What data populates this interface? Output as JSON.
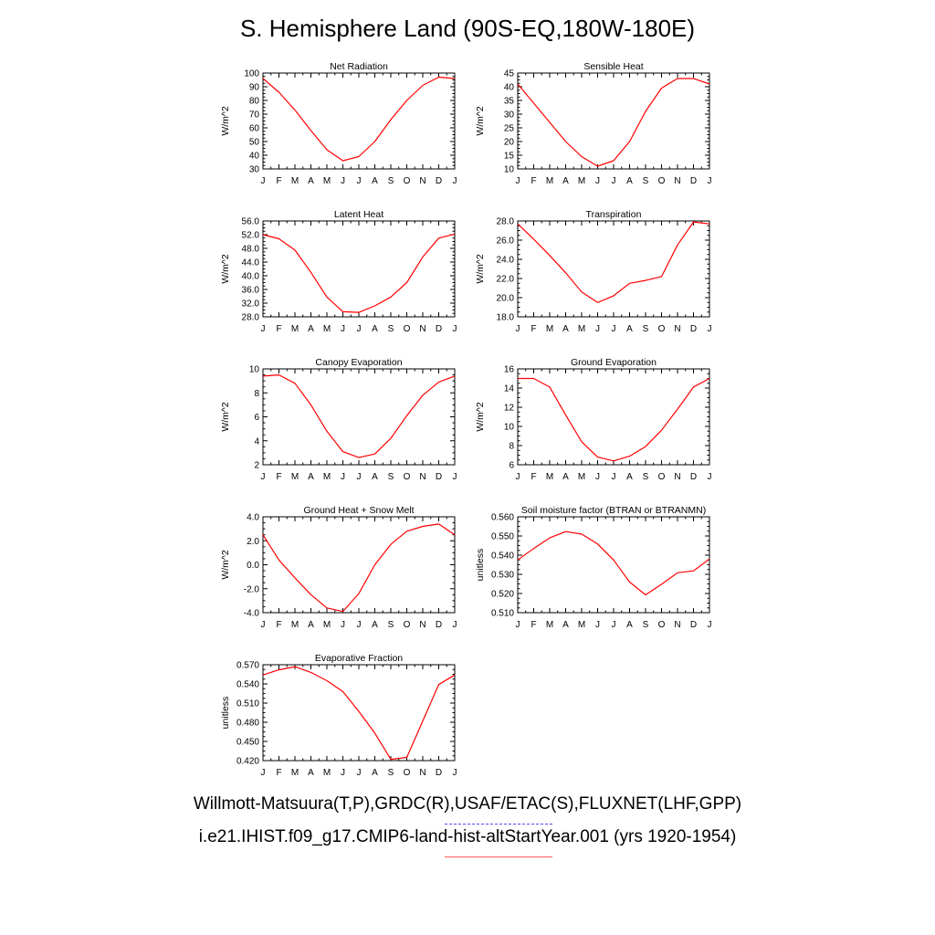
{
  "title": "S. Hemisphere Land (90S-EQ,180W-180E)",
  "legend": {
    "observations": "Willmott-Matsuura(T,P),GRDC(R),USAF/ETAC(S),FLUXNET(LHF,GPP)",
    "model": "i.e21.IHIST.f09_g17.CMIP6-land-hist-altStartYear.001 (yrs 1920-1954)",
    "model_color": "#ff0000",
    "observations_color": "#5050ff"
  },
  "chart_data": [
    {
      "type": "line",
      "title": "Net Radiation",
      "ylabel": "W/m^2",
      "categories": [
        "J",
        "F",
        "M",
        "A",
        "M",
        "J",
        "J",
        "A",
        "S",
        "O",
        "N",
        "D",
        "J"
      ],
      "ylim": [
        30,
        100
      ],
      "yticks": [
        "30",
        "40",
        "50",
        "60",
        "70",
        "80",
        "90",
        "100"
      ],
      "series": [
        {
          "values": [
            96,
            86,
            73,
            58,
            44,
            36,
            39,
            50,
            66,
            80,
            91,
            97,
            96
          ]
        }
      ]
    },
    {
      "type": "line",
      "title": "Sensible Heat",
      "ylabel": "W/m^2",
      "categories": [
        "J",
        "F",
        "M",
        "A",
        "M",
        "J",
        "J",
        "A",
        "S",
        "O",
        "N",
        "D",
        "J"
      ],
      "ylim": [
        10,
        45
      ],
      "yticks": [
        "10",
        "15",
        "20",
        "25",
        "30",
        "35",
        "40",
        "45"
      ],
      "series": [
        {
          "values": [
            41,
            34,
            27,
            20,
            14.5,
            11,
            13,
            20,
            31,
            39.5,
            43,
            43,
            41
          ]
        }
      ]
    },
    {
      "type": "line",
      "title": "Latent Heat",
      "ylabel": "W/m^2",
      "categories": [
        "J",
        "F",
        "M",
        "A",
        "M",
        "J",
        "J",
        "A",
        "S",
        "O",
        "N",
        "D",
        "J"
      ],
      "ylim": [
        28,
        56
      ],
      "yticks": [
        "28.0",
        "32.0",
        "36.0",
        "40.0",
        "44.0",
        "48.0",
        "52.0",
        "56.0"
      ],
      "series": [
        {
          "values": [
            52,
            50.8,
            47.5,
            41,
            33.8,
            29.5,
            29.3,
            31.2,
            33.8,
            38,
            45.5,
            51,
            52.2
          ]
        }
      ]
    },
    {
      "type": "line",
      "title": "Transpiration",
      "ylabel": "W/m^2",
      "categories": [
        "J",
        "F",
        "M",
        "A",
        "M",
        "J",
        "J",
        "A",
        "S",
        "O",
        "N",
        "D",
        "J"
      ],
      "ylim": [
        18,
        28
      ],
      "yticks": [
        "18.0",
        "20.0",
        "22.0",
        "24.0",
        "26.0",
        "28.0"
      ],
      "series": [
        {
          "values": [
            27.7,
            26.1,
            24.4,
            22.6,
            20.6,
            19.5,
            20.2,
            21.5,
            21.8,
            22.2,
            25.5,
            27.9,
            27.7
          ]
        }
      ]
    },
    {
      "type": "line",
      "title": "Canopy Evaporation",
      "ylabel": "W/m^2",
      "categories": [
        "J",
        "F",
        "M",
        "A",
        "M",
        "J",
        "J",
        "A",
        "S",
        "O",
        "N",
        "D",
        "J"
      ],
      "ylim": [
        2,
        10
      ],
      "yticks": [
        "2",
        "4",
        "6",
        "8",
        "10"
      ],
      "series": [
        {
          "values": [
            9.4,
            9.5,
            8.8,
            7.0,
            4.8,
            3.1,
            2.6,
            2.9,
            4.2,
            6.1,
            7.8,
            8.9,
            9.4
          ]
        }
      ]
    },
    {
      "type": "line",
      "title": "Ground Evaporation",
      "ylabel": "W/m^2",
      "categories": [
        "J",
        "F",
        "M",
        "A",
        "M",
        "J",
        "J",
        "A",
        "S",
        "O",
        "N",
        "D",
        "J"
      ],
      "ylim": [
        6,
        16
      ],
      "yticks": [
        "6",
        "8",
        "10",
        "12",
        "14",
        "16"
      ],
      "series": [
        {
          "values": [
            15,
            15,
            14.1,
            11.2,
            8.4,
            6.8,
            6.4,
            6.9,
            7.9,
            9.6,
            11.8,
            14.1,
            15
          ]
        }
      ]
    },
    {
      "type": "line",
      "title": "Ground Heat + Snow Melt",
      "ylabel": "W/m^2",
      "categories": [
        "J",
        "F",
        "M",
        "A",
        "M",
        "J",
        "J",
        "A",
        "S",
        "O",
        "N",
        "D",
        "J"
      ],
      "ylim": [
        -4,
        4
      ],
      "yticks": [
        "-4.0",
        "-2.0",
        "0.0",
        "2.0",
        "4.0"
      ],
      "series": [
        {
          "values": [
            2.5,
            0.4,
            -1.1,
            -2.5,
            -3.6,
            -3.9,
            -2.4,
            0.0,
            1.7,
            2.8,
            3.2,
            3.4,
            2.5
          ]
        }
      ]
    },
    {
      "type": "line",
      "title": "Soil moisture factor (BTRAN or BTRANMN)",
      "ylabel": "unitless",
      "categories": [
        "J",
        "F",
        "M",
        "A",
        "M",
        "J",
        "J",
        "A",
        "S",
        "O",
        "N",
        "D",
        "J"
      ],
      "ylim": [
        0.51,
        0.56
      ],
      "yticks": [
        "0.510",
        "0.520",
        "0.530",
        "0.540",
        "0.550",
        "0.560"
      ],
      "series": [
        {
          "values": [
            0.5375,
            0.5435,
            0.549,
            0.5523,
            0.551,
            0.5458,
            0.5375,
            0.526,
            0.5193,
            0.5248,
            0.5308,
            0.5318,
            0.538
          ]
        }
      ]
    },
    {
      "type": "line",
      "title": "Evaporative Fraction",
      "ylabel": "unitless",
      "categories": [
        "J",
        "F",
        "M",
        "A",
        "M",
        "J",
        "J",
        "A",
        "S",
        "O",
        "N",
        "D",
        "J"
      ],
      "ylim": [
        0.42,
        0.57
      ],
      "yticks": [
        "0.420",
        "0.450",
        "0.480",
        "0.510",
        "0.540",
        "0.570"
      ],
      "series": [
        {
          "values": [
            0.554,
            0.562,
            0.567,
            0.558,
            0.545,
            0.528,
            0.497,
            0.463,
            0.422,
            0.425,
            0.482,
            0.539,
            0.554
          ]
        }
      ]
    }
  ]
}
